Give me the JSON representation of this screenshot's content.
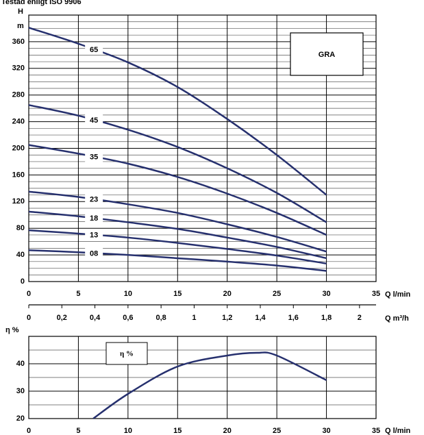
{
  "chart_data": [
    {
      "type": "line",
      "title": "Testad enligt ISO 9906",
      "ylabel": "H",
      "yunit": "m",
      "xlabel": "Q l/min",
      "x": [
        0,
        5,
        10,
        15,
        20,
        25,
        30
      ],
      "series": [
        {
          "name": "65",
          "color": "#26306e",
          "values": [
            381,
            357,
            329,
            292,
            244,
            190,
            130
          ]
        },
        {
          "name": "45",
          "color": "#26306e",
          "values": [
            265,
            249,
            228,
            202,
            170,
            133,
            89
          ]
        },
        {
          "name": "35",
          "color": "#26306e",
          "values": [
            205,
            192,
            177,
            157,
            132,
            103,
            70
          ]
        },
        {
          "name": "23",
          "color": "#26306e",
          "values": [
            135,
            127,
            116,
            103,
            86,
            67,
            45
          ]
        },
        {
          "name": "18",
          "color": "#26306e",
          "values": [
            105,
            98,
            89,
            79,
            66,
            52,
            35
          ]
        },
        {
          "name": "13",
          "color": "#26306e",
          "values": [
            77,
            72,
            66,
            58,
            49,
            39,
            27
          ]
        },
        {
          "name": "08",
          "color": "#26306e",
          "values": [
            47,
            44,
            40,
            35,
            30,
            24,
            16
          ]
        }
      ],
      "annotation": "GRA",
      "xlim": [
        0,
        35
      ],
      "xticks": [
        0,
        5,
        10,
        15,
        20,
        25,
        30,
        35
      ],
      "ylim": [
        0,
        400
      ],
      "yticks": [
        0,
        40,
        80,
        120,
        160,
        200,
        240,
        280,
        320,
        360
      ],
      "minor_yticks": [
        10,
        20,
        30,
        50,
        60,
        70,
        90,
        100,
        110,
        130,
        140,
        150,
        170,
        180,
        190,
        210,
        220,
        230,
        250,
        260,
        270,
        290,
        300,
        310,
        330,
        340,
        350,
        370,
        380,
        390,
        400
      ],
      "x2label": "Q m³/h",
      "x2lim": [
        0,
        2.1
      ],
      "x2ticks": [
        0,
        {
          "value": 0.2,
          "label": "0,2"
        },
        {
          "value": 0.4,
          "label": "0,4"
        },
        {
          "value": 0.6,
          "label": "0,6"
        },
        {
          "value": 0.8,
          "label": "0,8"
        },
        1,
        {
          "value": 1.2,
          "label": "1,2"
        },
        {
          "value": 1.4,
          "label": "1,4"
        },
        {
          "value": 1.6,
          "label": "1,6"
        },
        {
          "value": 1.8,
          "label": "1,8"
        },
        2
      ],
      "grid": true
    },
    {
      "type": "line",
      "ylabel": "η %",
      "xlabel": "Q l/min",
      "x": [
        6.5,
        10,
        15,
        20,
        23,
        25,
        30
      ],
      "series": [
        {
          "name": "η %",
          "color": "#26306e",
          "values": [
            20,
            29,
            39,
            43,
            44,
            43,
            34
          ]
        }
      ],
      "xlim": [
        0,
        35
      ],
      "xticks": [
        0,
        5,
        10,
        15,
        20,
        25,
        30,
        35
      ],
      "ylim": [
        20,
        50
      ],
      "yticks": [
        20,
        30,
        40
      ],
      "minor_yticks": [
        25,
        35,
        45,
        50
      ],
      "grid": true
    }
  ]
}
